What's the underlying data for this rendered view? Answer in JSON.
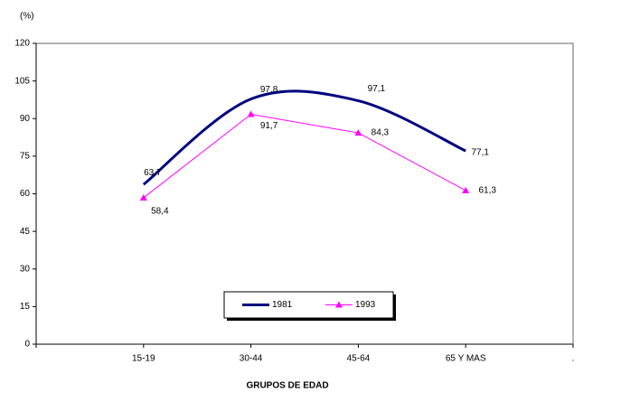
{
  "chart_data": {
    "type": "line",
    "y_label": "(%)",
    "x_label": "GRUPOS DE EDAD",
    "categories": [
      null,
      "15-19",
      "30-44",
      "45-64",
      "65 Y MAS",
      "."
    ],
    "series": [
      {
        "name": "1981",
        "color": "#000080",
        "smooth": true,
        "marker": "none",
        "values": [
          null,
          63.7,
          97.8,
          97.1,
          77.1,
          null
        ],
        "value_labels": [
          null,
          "63,7",
          "97,8",
          "97,1",
          "77,1",
          null
        ]
      },
      {
        "name": "1993",
        "color": "#ff00ff",
        "smooth": false,
        "marker": "triangle",
        "values": [
          null,
          58.4,
          91.7,
          84.3,
          61.3,
          null
        ],
        "value_labels": [
          null,
          "58,4",
          "91,7",
          "84,3",
          "61,3",
          null
        ]
      }
    ],
    "ylim": [
      0,
      120
    ],
    "yticks": [
      0,
      15,
      30,
      45,
      60,
      75,
      90,
      105,
      120
    ],
    "grid": false,
    "legend": "bottom"
  }
}
